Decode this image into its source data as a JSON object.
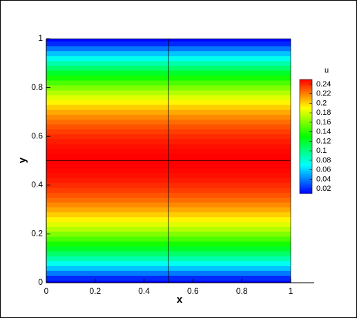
{
  "chart_data": {
    "type": "contour",
    "x_label": "x",
    "y_label": "y",
    "xlim": [
      0,
      1
    ],
    "xticks": [
      0,
      0.2,
      0.4,
      0.6,
      0.8,
      1
    ],
    "ylim": [
      0,
      1
    ],
    "yticks": [
      0,
      0.2,
      0.4,
      0.6,
      0.8,
      1
    ],
    "y": [
      0,
      0.02,
      0.04,
      0.06,
      0.08,
      0.1,
      0.12,
      0.14,
      0.16,
      0.18,
      0.2,
      0.22,
      0.24,
      0.26,
      0.28,
      0.3,
      0.32,
      0.34,
      0.36,
      0.38,
      0.4,
      0.42,
      0.44,
      0.46,
      0.48,
      0.5,
      0.52,
      0.54,
      0.56,
      0.58,
      0.6,
      0.62,
      0.64,
      0.66,
      0.68,
      0.7,
      0.72,
      0.74,
      0.76,
      0.78,
      0.8,
      0.82,
      0.84,
      0.86,
      0.88,
      0.9,
      0.92,
      0.94,
      0.96,
      0.98,
      1
    ],
    "values": [
      0,
      0.0196,
      0.0384,
      0.0564,
      0.0736,
      0.09,
      0.1056,
      0.1204,
      0.1344,
      0.1476,
      0.16,
      0.1716,
      0.1824,
      0.1924,
      0.2016,
      0.21,
      0.2176,
      0.2244,
      0.2304,
      0.2356,
      0.24,
      0.2436,
      0.2464,
      0.2484,
      0.2496,
      0.25,
      0.2496,
      0.2484,
      0.2464,
      0.2436,
      0.24,
      0.2356,
      0.2304,
      0.2244,
      0.2176,
      0.21,
      0.2016,
      0.1924,
      0.1824,
      0.1716,
      0.16,
      0.1476,
      0.1344,
      0.1204,
      0.1056,
      0.09,
      0.0736,
      0.0564,
      0.0384,
      0.0196,
      0
    ],
    "colorbar_title": "u",
    "clim": [
      0.01,
      0.25
    ],
    "cticks": [
      0.02,
      0.04,
      0.06,
      0.08,
      0.1,
      0.12,
      0.14,
      0.16,
      0.18,
      0.2,
      0.22,
      0.24
    ],
    "colorscale": [
      "#0000ff",
      "#00ffff",
      "#00ff00",
      "#ffff00",
      "#ff0000"
    ]
  }
}
